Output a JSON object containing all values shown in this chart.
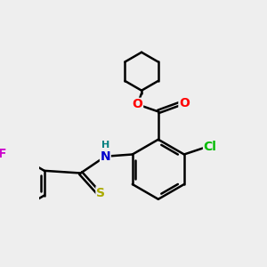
{
  "background_color": "#eeeeee",
  "bond_color": "#000000",
  "bond_width": 1.8,
  "atom_colors": {
    "O": "#ff0000",
    "N": "#0000cc",
    "Cl": "#00bb00",
    "F": "#cc00cc",
    "S": "#aaaa00",
    "H": "#008080"
  },
  "font_size": 10,
  "fig_size": [
    3.0,
    3.0
  ],
  "dpi": 100
}
